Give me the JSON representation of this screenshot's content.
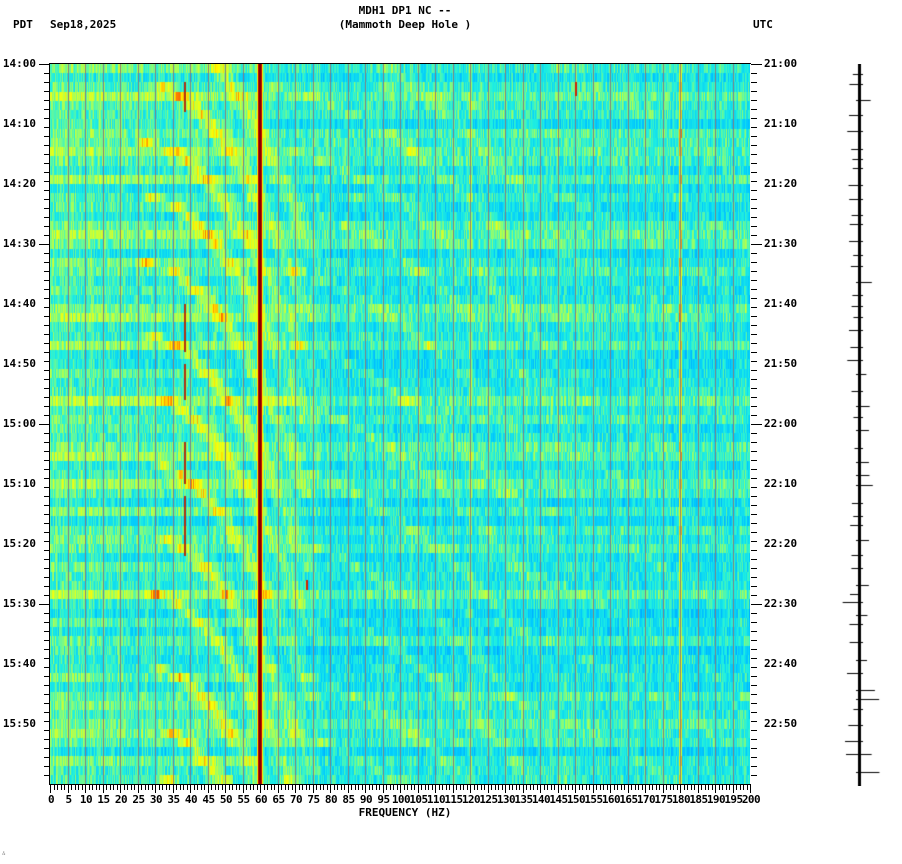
{
  "header": {
    "title_line1": "MDH1 DP1 NC --",
    "title_line2": "(Mammoth Deep Hole )",
    "timezone_left": "PDT",
    "date": "Sep18,2025",
    "timezone_right": "UTC"
  },
  "footer": {
    "mark": "∴"
  },
  "colors": {
    "background": "#ffffff",
    "axis": "#000000",
    "gridline": "#808080",
    "colormap": [
      "#0000c8",
      "#0050ff",
      "#0090ff",
      "#00c8ff",
      "#20f0e0",
      "#a0ff60",
      "#ffff00",
      "#ff8000",
      "#c00000",
      "#800000"
    ]
  },
  "chart_data": {
    "type": "heatmap",
    "title": "MDH1 DP1 NC -- (Mammoth Deep Hole )",
    "subtitle": "Sep18,2025",
    "xlabel": "FREQUENCY (HZ)",
    "ylabel_left": "PDT",
    "ylabel_right": "UTC",
    "xlim": [
      0,
      200
    ],
    "x_ticks": [
      0,
      5,
      10,
      15,
      20,
      25,
      30,
      35,
      40,
      45,
      50,
      55,
      60,
      65,
      70,
      75,
      80,
      85,
      90,
      95,
      100,
      105,
      110,
      115,
      120,
      125,
      130,
      135,
      140,
      145,
      150,
      155,
      160,
      165,
      170,
      175,
      180,
      185,
      190,
      195,
      200
    ],
    "x_minor_tick_step": 1,
    "grid": {
      "vertical_every_hz": 5
    },
    "y_range_minutes": 120,
    "y_ticks_left": [
      "14:00",
      "14:10",
      "14:20",
      "14:30",
      "14:40",
      "14:50",
      "15:00",
      "15:10",
      "15:20",
      "15:30",
      "15:40",
      "15:50"
    ],
    "y_ticks_right": [
      "21:00",
      "21:10",
      "21:20",
      "21:30",
      "21:40",
      "21:50",
      "22:00",
      "22:10",
      "22:20",
      "22:30",
      "22:40",
      "22:50"
    ],
    "y_minor_tick_step_minutes": 1.5,
    "row_count": 78,
    "features": [
      {
        "type": "line",
        "freq_hz": 60,
        "intensity": "max",
        "label": "60 Hz power line"
      },
      {
        "type": "line",
        "freq_hz": 180,
        "intensity": "moderate"
      },
      {
        "type": "line",
        "freq_hz": 120,
        "intensity": "weak"
      },
      {
        "type": "line",
        "freq_hz": 38.5,
        "intensity": "intermittent"
      },
      {
        "type": "spot",
        "freq_hz": 150,
        "minute": 3,
        "intensity": "high"
      },
      {
        "type": "spot",
        "freq_hz": 73,
        "minute": 86,
        "intensity": "high"
      },
      {
        "type": "curved_gliding_tones",
        "description": "repeating upward-gliding harmonic arcs, approx every 10-12 minutes"
      }
    ],
    "colorscale": "jet (blue=low, red=high)"
  }
}
